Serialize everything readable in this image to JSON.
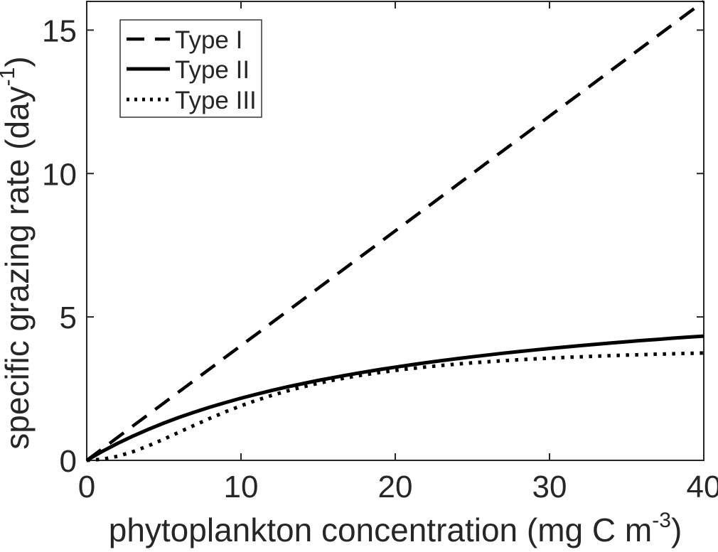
{
  "chart_data": {
    "type": "line",
    "title": "",
    "xlabel": {
      "text": "phytoplankton concentration (mg C m-3)",
      "pre": "phytoplankton concentration (mg C m",
      "sup": "-3",
      "post": ")"
    },
    "ylabel": {
      "text": "specific grazing rate (day-1)",
      "pre": "specific grazing rate (day",
      "sup": "-1",
      "post": ")"
    },
    "xlim": [
      0,
      40
    ],
    "ylim": [
      0,
      16
    ],
    "xticks": [
      0,
      10,
      20,
      30,
      40
    ],
    "yticks": [
      0,
      5,
      10,
      15
    ],
    "grid": false,
    "legend_position": "top-left",
    "x": [
      0,
      1,
      2,
      3,
      4,
      5,
      6,
      7,
      8,
      9,
      10,
      11,
      12,
      13,
      14,
      15,
      16,
      17,
      18,
      19,
      20,
      21,
      22,
      23,
      24,
      25,
      26,
      27,
      28,
      29,
      30,
      31,
      32,
      33,
      34,
      35,
      36,
      37,
      38,
      39,
      40
    ],
    "series": [
      {
        "name": "Type I",
        "linestyle": "dashed",
        "color": "#000000",
        "values": [
          0,
          0.4,
          0.8,
          1.2,
          1.6,
          2,
          2.4,
          2.8,
          3.2,
          3.6,
          4,
          4.4,
          4.8,
          5.2,
          5.6,
          6,
          6.4,
          6.8,
          7.2,
          7.6,
          8,
          8.4,
          8.8,
          9.2,
          9.6,
          10,
          10.4,
          10.8,
          11.2,
          11.6,
          12,
          12.4,
          12.8,
          13.2,
          13.6,
          14,
          14.4,
          14.8,
          15.2,
          15.6,
          16
        ]
      },
      {
        "name": "Type II",
        "linestyle": "solid",
        "color": "#000000",
        "values": [
          0,
          0.31,
          0.591,
          0.848,
          1.083,
          1.3,
          1.5,
          1.685,
          1.857,
          2.017,
          2.167,
          2.306,
          2.438,
          2.561,
          2.676,
          2.786,
          2.889,
          2.986,
          3.079,
          3.167,
          3.25,
          3.329,
          3.405,
          3.477,
          3.545,
          3.611,
          3.674,
          3.734,
          3.792,
          3.847,
          3.9,
          3.951,
          4,
          4.047,
          4.093,
          4.136,
          4.179,
          4.219,
          4.259,
          4.297,
          4.333
        ]
      },
      {
        "name": "Type III",
        "linestyle": "dotted",
        "color": "#000000",
        "values": [
          0,
          0.036,
          0.14,
          0.302,
          0.507,
          0.739,
          0.985,
          1.231,
          1.469,
          1.694,
          1.902,
          2.093,
          2.266,
          2.421,
          2.56,
          2.685,
          2.796,
          2.895,
          2.984,
          3.064,
          3.136,
          3.2,
          3.258,
          3.31,
          3.357,
          3.4,
          3.439,
          3.475,
          3.507,
          3.536,
          3.563,
          3.588,
          3.611,
          3.632,
          3.652,
          3.67,
          3.686,
          3.702,
          3.716,
          3.73,
          3.742
        ]
      }
    ]
  },
  "colors": {
    "background": "#ffffff",
    "axis": "#262626",
    "line": "#000000"
  }
}
